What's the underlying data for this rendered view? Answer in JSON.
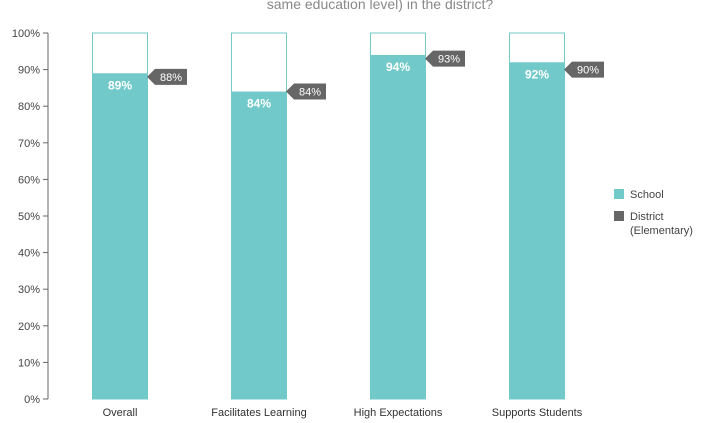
{
  "chart_data": {
    "type": "bar",
    "title": "same education level) in the district?",
    "categories": [
      "Overall",
      "Facilitates Learning",
      "High Expectations",
      "Supports Students"
    ],
    "series": [
      {
        "name": "School",
        "values": [
          89,
          84,
          94,
          92
        ],
        "labels": [
          "89%",
          "84%",
          "94%",
          "92%"
        ]
      },
      {
        "name": "District (Elementary)",
        "name_lines": [
          "District",
          "(Elementary)"
        ],
        "values": [
          88,
          84,
          93,
          90
        ],
        "labels": [
          "88%",
          "84%",
          "93%",
          "90%"
        ]
      }
    ],
    "yticks": [
      "0%",
      "10%",
      "20%",
      "30%",
      "40%",
      "50%",
      "60%",
      "70%",
      "80%",
      "90%",
      "100%"
    ],
    "ylim": [
      0,
      100
    ],
    "xlabel": "",
    "ylabel": "",
    "grid": false,
    "legend_position": "right",
    "colors": {
      "school": "#72c9c9",
      "district": "#666666",
      "bar_outline": "#72c9c9",
      "axis": "#666666"
    }
  }
}
